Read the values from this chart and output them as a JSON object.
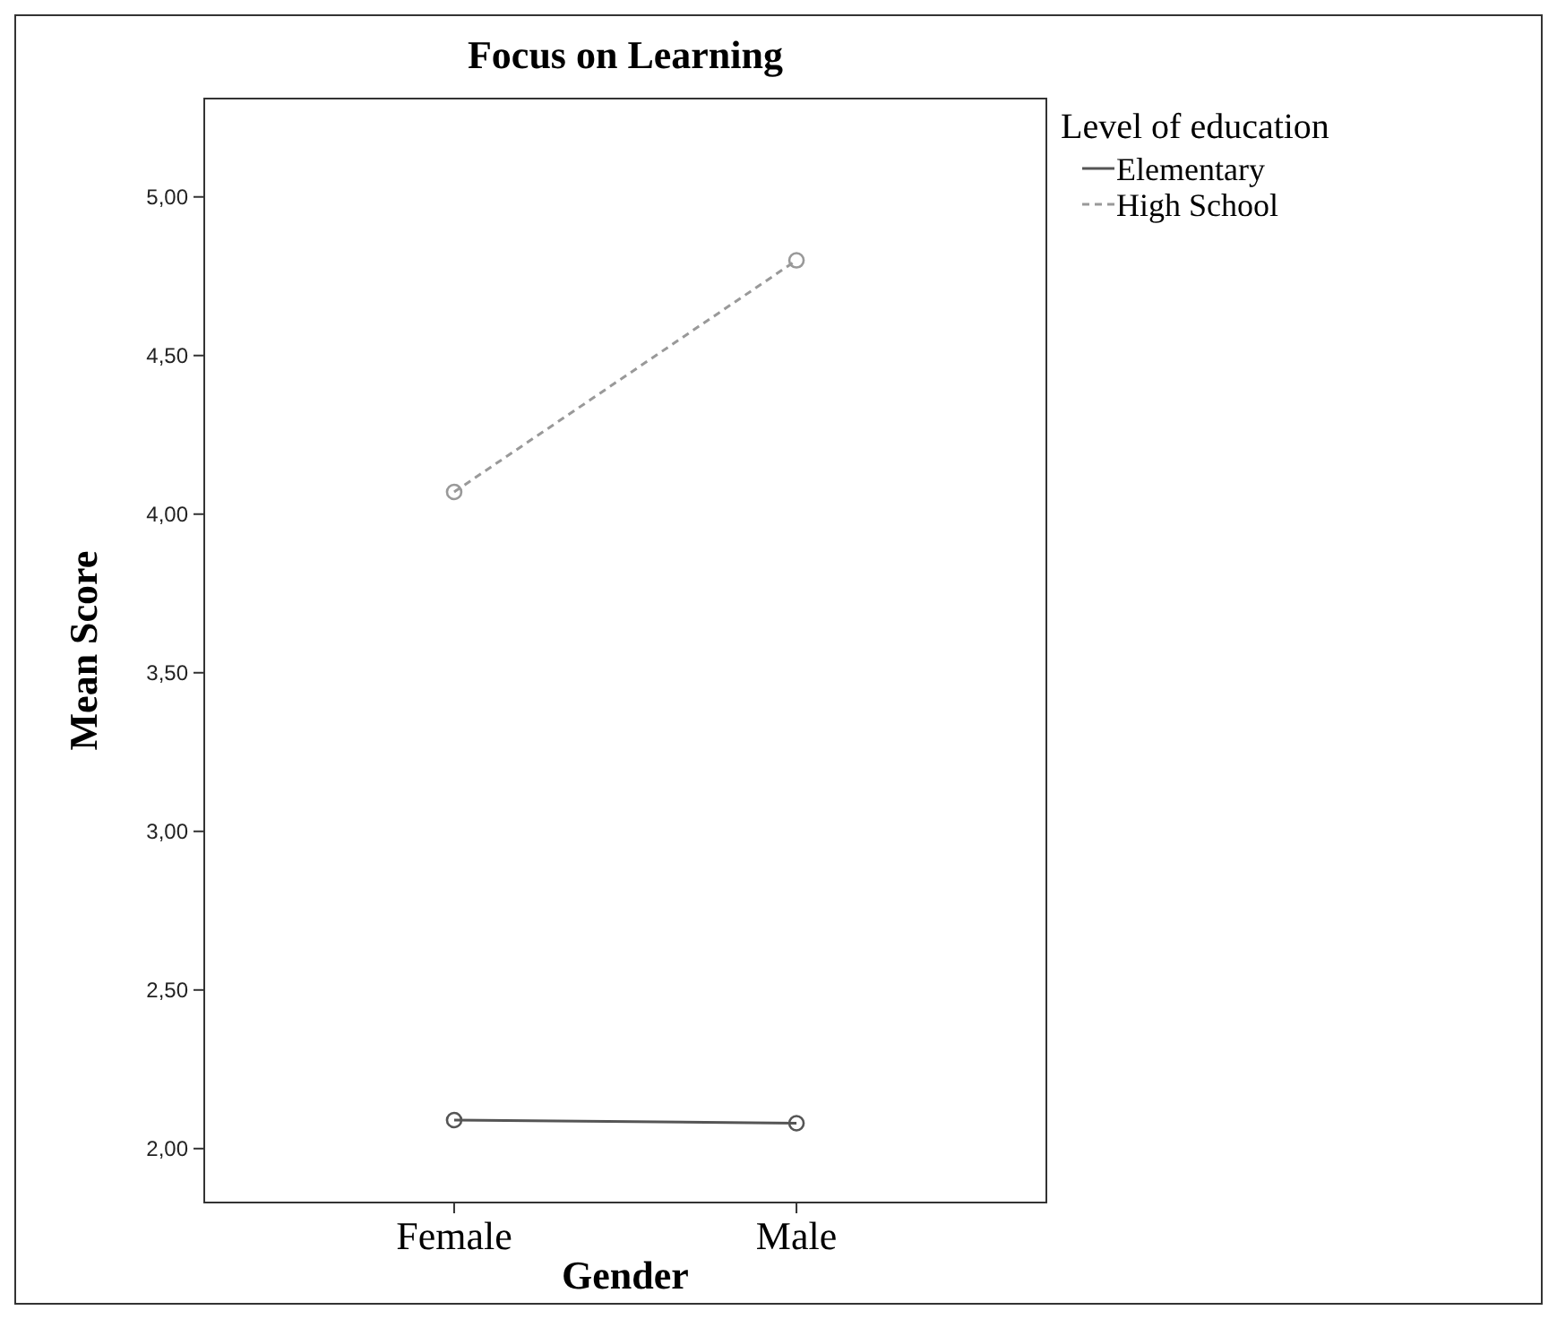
{
  "chart_data": {
    "type": "line",
    "title": "Focus on Learning",
    "xlabel": "Gender",
    "ylabel": "Mean Score",
    "legend_title": "Level of education",
    "categories": [
      "Female",
      "Male"
    ],
    "series": [
      {
        "name": "Elementary",
        "color": "#555555",
        "line_style": "solid",
        "values": [
          2.09,
          2.08
        ]
      },
      {
        "name": "High School",
        "color": "#999999",
        "line_style": "dashed",
        "values": [
          4.07,
          4.8
        ]
      }
    ],
    "ylim": [
      1.83,
      5.31
    ],
    "yticks": [
      {
        "value": 2,
        "label": "2,00"
      },
      {
        "value": 2.5,
        "label": "2,50"
      },
      {
        "value": 3,
        "label": "3,00"
      },
      {
        "value": 3.5,
        "label": "3,50"
      },
      {
        "value": 4,
        "label": "4,00"
      },
      {
        "value": 4.5,
        "label": "4,50"
      },
      {
        "value": 5,
        "label": "5,00"
      }
    ],
    "marker": "circle",
    "legend": "top right",
    "grid": false
  }
}
